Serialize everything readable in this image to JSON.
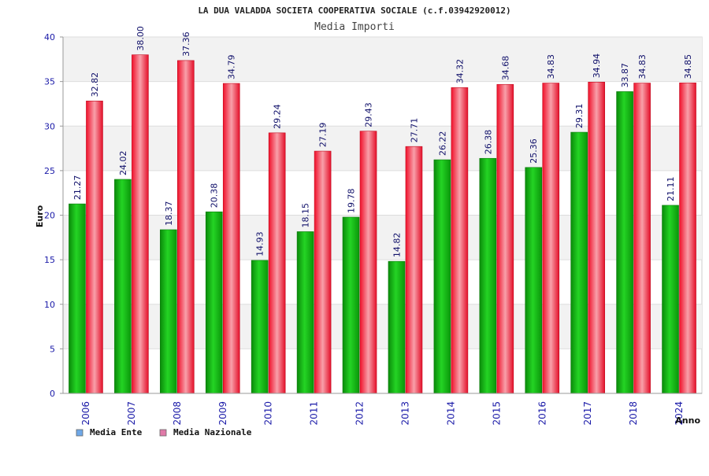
{
  "chart_data": {
    "type": "bar",
    "title": "LA DUA VALADDA SOCIETA COOPERATIVA SOCIALE (c.f.03942920012)",
    "subtitle": "Media Importi",
    "xlabel": "Anno",
    "ylabel": "Euro",
    "ylim": [
      0,
      40
    ],
    "yticks": [
      0,
      5,
      10,
      15,
      20,
      25,
      30,
      35,
      40
    ],
    "grid": true,
    "legend_position": "bottom-left",
    "categories": [
      "2006",
      "2007",
      "2008",
      "2009",
      "2010",
      "2011",
      "2012",
      "2013",
      "2014",
      "2015",
      "2016",
      "2017",
      "2018",
      "2024"
    ],
    "series": [
      {
        "name": "Media Ente",
        "color": "#13b613",
        "legend_color": "#6fa8e8",
        "values": [
          21.27,
          24.02,
          18.37,
          20.38,
          14.93,
          18.15,
          19.78,
          14.82,
          26.22,
          26.38,
          25.36,
          29.31,
          33.87,
          21.11
        ],
        "labels": [
          "21.27",
          "24.02",
          "18.37",
          "20.38",
          "14.93",
          "18.15",
          "19.78",
          "14.82",
          "26.22",
          "26.38",
          "25.36",
          "29.31",
          "33.87",
          "21.11"
        ]
      },
      {
        "name": "Media Nazionale",
        "color": "#e8102a",
        "legend_color": "#e07aa8",
        "values": [
          32.82,
          38.0,
          37.36,
          34.79,
          29.24,
          27.19,
          29.43,
          27.71,
          34.32,
          34.68,
          34.83,
          34.94,
          34.83,
          34.85
        ],
        "labels": [
          "32.82",
          "38.00",
          "37.36",
          "34.79",
          "29.24",
          "27.19",
          "29.43",
          "27.71",
          "34.32",
          "34.68",
          "34.83",
          "34.94",
          "34.83",
          "34.85"
        ]
      }
    ]
  }
}
